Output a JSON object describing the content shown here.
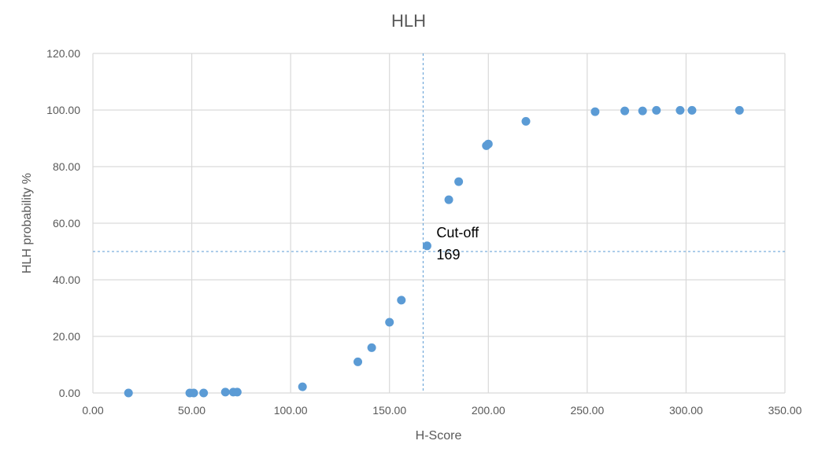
{
  "chart_data": {
    "type": "scatter",
    "title": "HLH",
    "xlabel": "H-Score",
    "ylabel": "HLH probability %",
    "xlim": [
      0,
      350
    ],
    "ylim": [
      0,
      120
    ],
    "x_ticks": [
      "0.00",
      "50.00",
      "100.00",
      "150.00",
      "200.00",
      "250.00",
      "300.00",
      "350.00"
    ],
    "y_ticks": [
      "0.00",
      "20.00",
      "40.00",
      "60.00",
      "80.00",
      "100.00",
      "120.00"
    ],
    "grid": true,
    "series": [
      {
        "color": "#5B9BD5",
        "points": [
          {
            "x": 18,
            "y": 0.0
          },
          {
            "x": 49,
            "y": 0.0
          },
          {
            "x": 51,
            "y": 0.0
          },
          {
            "x": 56,
            "y": 0.0
          },
          {
            "x": 67,
            "y": 0.3
          },
          {
            "x": 71,
            "y": 0.3
          },
          {
            "x": 73,
            "y": 0.3
          },
          {
            "x": 106,
            "y": 2.2
          },
          {
            "x": 134,
            "y": 11.0
          },
          {
            "x": 141,
            "y": 16.0
          },
          {
            "x": 150,
            "y": 25.0
          },
          {
            "x": 156,
            "y": 32.8
          },
          {
            "x": 169,
            "y": 52.0
          },
          {
            "x": 180,
            "y": 68.3
          },
          {
            "x": 185,
            "y": 74.7
          },
          {
            "x": 199,
            "y": 87.4
          },
          {
            "x": 200,
            "y": 88.0
          },
          {
            "x": 219,
            "y": 96.0
          },
          {
            "x": 254,
            "y": 99.4
          },
          {
            "x": 269,
            "y": 99.7
          },
          {
            "x": 278,
            "y": 99.7
          },
          {
            "x": 285,
            "y": 99.9
          },
          {
            "x": 297,
            "y": 99.9
          },
          {
            "x": 303,
            "y": 99.9
          },
          {
            "x": 327,
            "y": 99.9
          }
        ]
      }
    ],
    "reference_lines": {
      "vertical_x": 167,
      "horizontal_y": 50,
      "color": "#5B9BD5"
    },
    "annotation": {
      "line1": "Cut-off",
      "line2": "169",
      "x": 169,
      "y": 52.0
    }
  }
}
